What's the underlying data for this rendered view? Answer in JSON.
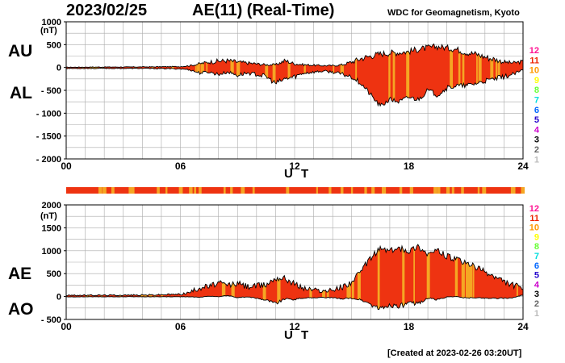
{
  "header": {
    "date": "2023/02/25",
    "title": "AE(11) (Real-Time)",
    "org": "WDC for Geomagnetism, Kyoto",
    "created": "[Created at 2023-02-26 03:20UT]"
  },
  "colors": {
    "fill_red": "#ee3311",
    "fill_orange": "#f5a623",
    "grid": "#aaaaaa",
    "station_counts": {
      "12": "#ff1493",
      "11": "#ee2200",
      "10": "#ff9900",
      "9": "#ffff00",
      "8": "#66ff33",
      "7": "#00dddd",
      "6": "#0066ff",
      "5": "#2200cc",
      "4": "#cc00cc",
      "3": "#000000",
      "2": "#666666",
      "1": "#bbbbbb"
    }
  },
  "legend": {
    "station_counts": [
      "12",
      "11",
      "10",
      "9",
      "8",
      "7",
      "6",
      "5",
      "4",
      "3",
      "2",
      "1"
    ]
  },
  "chart_data": [
    {
      "type": "area",
      "series_labels": [
        "AU",
        "AL"
      ],
      "ylabel": "(nT)",
      "xlabel": "U T",
      "xlim": [
        0,
        24
      ],
      "ylim": [
        -2000,
        1000
      ],
      "xticks": [
        "00",
        "06",
        "12",
        "18",
        "24"
      ],
      "yticks": [
        "1000",
        "500",
        "0",
        "- 500",
        "- 1000",
        "- 1500",
        "- 2000"
      ],
      "x": [
        0,
        1,
        2,
        3,
        4,
        5,
        6,
        6.5,
        7,
        7.5,
        8,
        8.5,
        9,
        9.5,
        10,
        10.5,
        11,
        11.5,
        12,
        12.5,
        13,
        13.5,
        14,
        14.5,
        15,
        15.5,
        16,
        16.5,
        17,
        17.5,
        18,
        18.5,
        19,
        19.5,
        20,
        20.5,
        21,
        21.5,
        22,
        22.5,
        23,
        23.5,
        24
      ],
      "series": [
        {
          "name": "AU",
          "values": [
            5,
            8,
            10,
            10,
            12,
            15,
            20,
            40,
            80,
            120,
            140,
            150,
            120,
            100,
            80,
            60,
            60,
            150,
            80,
            60,
            50,
            40,
            40,
            60,
            120,
            200,
            250,
            300,
            320,
            330,
            350,
            400,
            430,
            460,
            430,
            400,
            330,
            300,
            230,
            180,
            120,
            100,
            130
          ]
        },
        {
          "name": "AL",
          "values": [
            -20,
            -20,
            -20,
            -20,
            -20,
            -25,
            -30,
            -50,
            -120,
            -100,
            -150,
            -100,
            -170,
            -120,
            -150,
            -200,
            -350,
            -250,
            -200,
            -120,
            -100,
            -80,
            -100,
            -150,
            -200,
            -350,
            -600,
            -850,
            -700,
            -750,
            -650,
            -700,
            -500,
            -600,
            -450,
            -400,
            -400,
            -350,
            -300,
            -250,
            -200,
            -150,
            -50
          ]
        }
      ]
    },
    {
      "type": "area",
      "series_labels": [
        "AE",
        "AO"
      ],
      "ylabel": "(nT)",
      "xlabel": "U T",
      "xlim": [
        0,
        24
      ],
      "ylim": [
        -500,
        2000
      ],
      "xticks": [
        "00",
        "06",
        "12",
        "18",
        "24"
      ],
      "yticks": [
        "2000",
        "1500",
        "1000",
        "500",
        "0",
        "- 500"
      ],
      "x": [
        0,
        1,
        2,
        3,
        4,
        5,
        6,
        6.5,
        7,
        7.5,
        8,
        8.5,
        9,
        9.5,
        10,
        10.5,
        11,
        11.5,
        12,
        12.5,
        13,
        13.5,
        14,
        14.5,
        15,
        15.5,
        16,
        16.5,
        17,
        17.5,
        18,
        18.5,
        19,
        19.5,
        20,
        20.5,
        21,
        21.5,
        22,
        22.5,
        23,
        23.5,
        24
      ],
      "series": [
        {
          "name": "AE",
          "values": [
            25,
            28,
            30,
            30,
            32,
            40,
            50,
            90,
            200,
            220,
            290,
            250,
            290,
            220,
            230,
            260,
            410,
            400,
            280,
            180,
            150,
            120,
            140,
            210,
            320,
            550,
            850,
            1050,
            1000,
            1050,
            1000,
            1100,
            930,
            1000,
            880,
            800,
            730,
            650,
            530,
            430,
            320,
            250,
            180
          ]
        },
        {
          "name": "AO",
          "values": [
            -8,
            -6,
            -5,
            -5,
            -4,
            -5,
            -5,
            -5,
            -20,
            10,
            -5,
            25,
            -25,
            -10,
            -35,
            -70,
            -145,
            -50,
            -60,
            -30,
            -25,
            -20,
            -30,
            -45,
            -40,
            -75,
            -175,
            -275,
            -190,
            -210,
            -150,
            -150,
            -35,
            -70,
            -10,
            0,
            -35,
            -25,
            -35,
            -35,
            -40,
            -25,
            40
          ]
        }
      ]
    }
  ]
}
